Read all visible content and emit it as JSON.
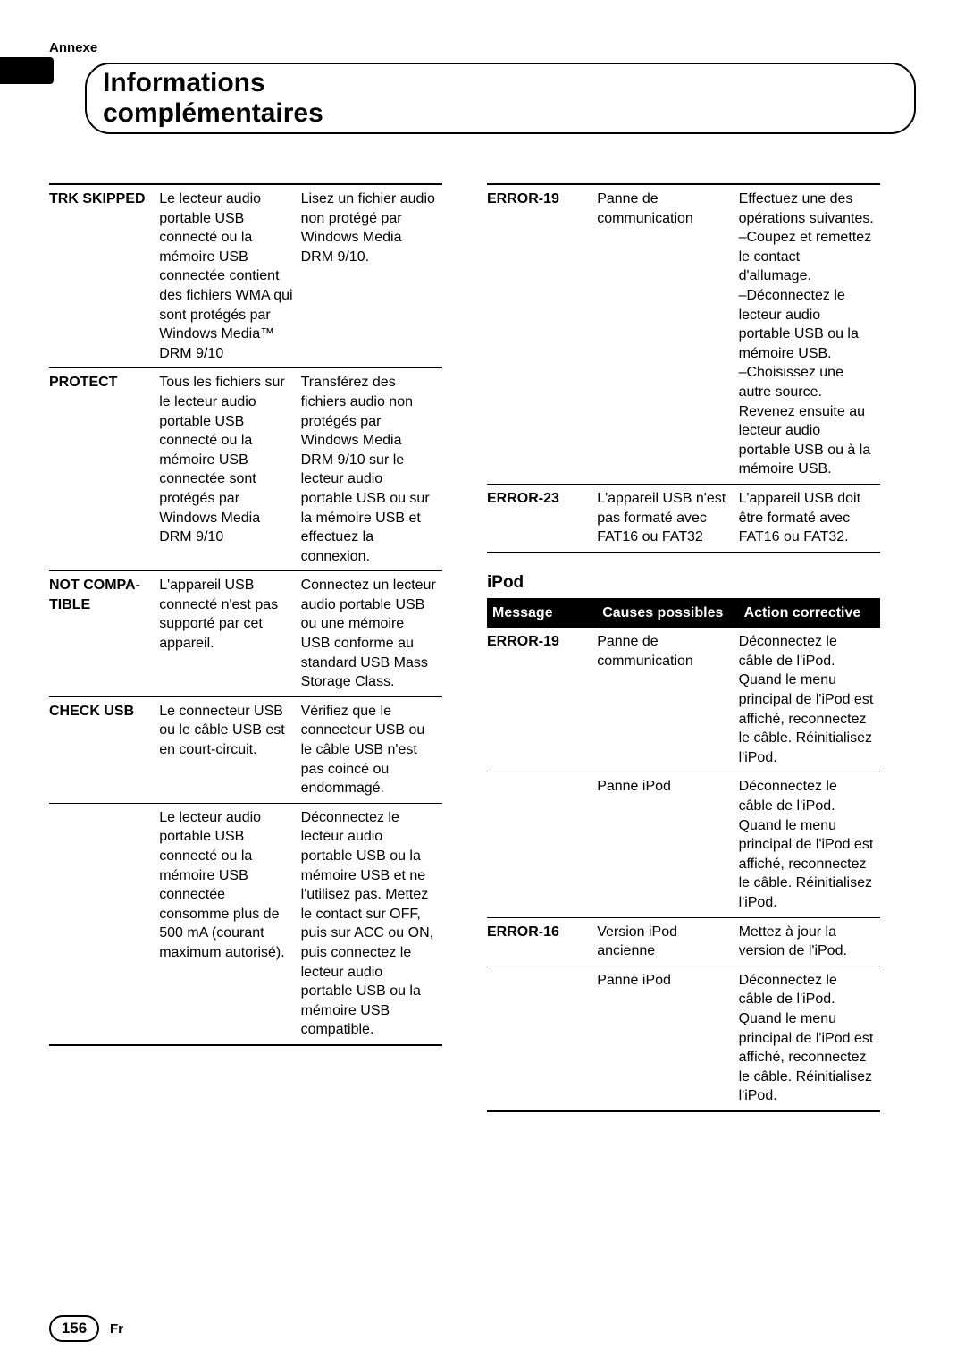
{
  "section_label": "Annexe",
  "page_title": "Informations complémentaires",
  "left_table": {
    "rows": [
      {
        "msg": "TRK SKIPPED",
        "cause": "Le lecteur audio portable USB connecté ou la mémoire USB connectée contient des fichiers WMA qui sont protégés par Windows Media™ DRM 9/10",
        "action": "Lisez un fichier audio non protégé par Windows Media DRM 9/10.",
        "top": "hr-top"
      },
      {
        "msg": "PROTECT",
        "cause": "Tous les fichiers sur le lecteur audio portable USB connecté ou la mémoire USB connectée sont protégés par Windows Media DRM 9/10",
        "action": "Transférez des fichiers audio non protégés par Windows Media DRM 9/10 sur le lecteur audio portable USB ou sur la mémoire USB et effectuez la connexion.",
        "top": "hr-thin"
      },
      {
        "msg": "NOT COMPA-\nTIBLE",
        "cause": "L'appareil USB connecté n'est pas supporté par cet appareil.",
        "action": "Connectez un lecteur audio portable USB ou une mémoire USB conforme au standard USB Mass Storage Class.",
        "top": "hr-thin"
      },
      {
        "msg": "CHECK USB",
        "cause": "Le connecteur USB ou le câble USB est en court-circuit.",
        "action": "Vérifiez que le connecteur USB ou le câble USB n'est pas coincé ou endommagé.",
        "top": "hr-thin"
      },
      {
        "msg": "",
        "cause": "Le lecteur audio portable USB connecté ou la mémoire USB connectée consomme plus de 500 mA (courant maximum autorisé).",
        "action": "Déconnectez le lecteur audio portable USB ou la mémoire USB et ne l'utilisez pas. Mettez le contact sur OFF, puis sur ACC ou ON, puis connectez le lecteur audio portable USB ou la mémoire USB compatible.",
        "top": "hr-thin",
        "bottom": "hr-bottom"
      }
    ]
  },
  "right_top_table": {
    "rows": [
      {
        "msg": "ERROR-19",
        "cause": "Panne de communication",
        "action": "Effectuez une des opérations suivantes.\n–Coupez et remettez le contact d'allumage.\n–Déconnectez le lecteur audio portable USB ou la mémoire USB.\n–Choisissez une autre source.\nRevenez ensuite au lecteur audio portable USB ou à la mémoire USB.",
        "top": "hr-top"
      },
      {
        "msg": "ERROR-23",
        "cause": "L'appareil USB n'est pas formaté avec FAT16 ou FAT32",
        "action": "L'appareil USB doit être formaté avec FAT16 ou FAT32.",
        "top": "hr-thin",
        "bottom": "hr-bottom"
      }
    ]
  },
  "ipod": {
    "heading": "iPod",
    "header": {
      "msg": "Message",
      "cause": "Causes possibles",
      "action": "Action corrective"
    },
    "rows": [
      {
        "msg": "ERROR-19",
        "cause": "Panne de communication",
        "action": "Déconnectez le câble de l'iPod. Quand le menu principal de l'iPod est affiché, reconnectez le câble. Réinitialisez l'iPod.",
        "top": ""
      },
      {
        "msg": "",
        "cause": "Panne iPod",
        "action": "Déconnectez le câble de l'iPod. Quand le menu principal de l'iPod est affiché, reconnectez le câble. Réinitialisez l'iPod.",
        "top": "hr-thin"
      },
      {
        "msg": "ERROR-16",
        "cause": "Version iPod ancienne",
        "action": "Mettez à jour la version de l'iPod.",
        "top": "hr-thin"
      },
      {
        "msg": "",
        "cause": "Panne iPod",
        "action": "Déconnectez le câble de l'iPod. Quand le menu principal de l'iPod est affiché, reconnectez le câble. Réinitialisez l'iPod.",
        "top": "hr-thin",
        "bottom": "hr-bottom"
      }
    ]
  },
  "page_number": "156",
  "page_lang": "Fr"
}
